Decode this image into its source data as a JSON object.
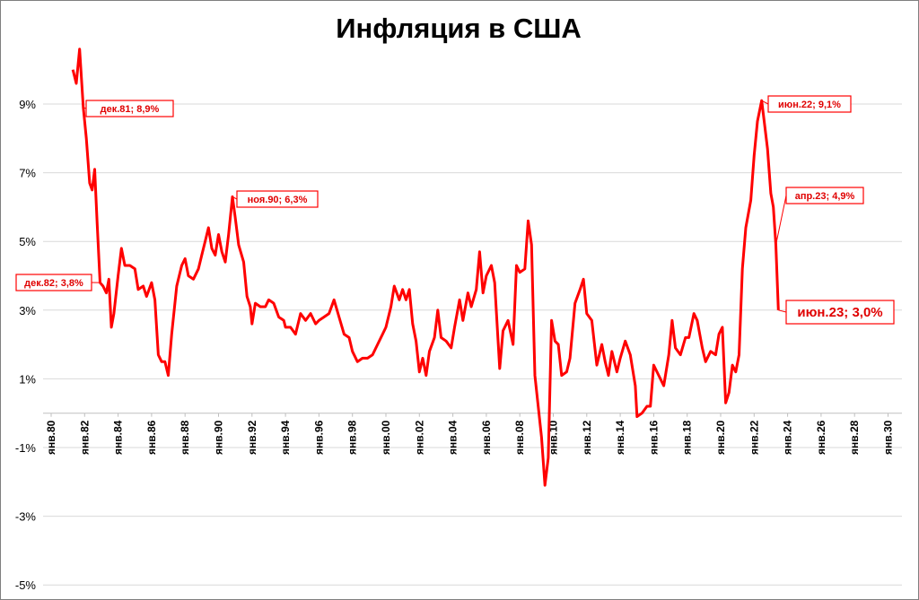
{
  "chart_data": {
    "type": "line",
    "title": "Инфляция в США",
    "xlabel": "",
    "ylabel": "",
    "ylim": [
      -5,
      10
    ],
    "y_ticks": [
      "9%",
      "7%",
      "5%",
      "3%",
      "1%",
      "-1%",
      "-3%",
      "-5%"
    ],
    "x_ticks": [
      "янв.80",
      "янв.82",
      "янв.84",
      "янв.86",
      "янв.88",
      "янв.90",
      "янв.92",
      "янв.94",
      "янв.96",
      "янв.98",
      "янв.00",
      "янв.02",
      "янв.04",
      "янв.06",
      "янв.08",
      "янв.10",
      "янв.12",
      "янв.14",
      "янв.16",
      "янв.18",
      "янв.20",
      "янв.22",
      "янв.24",
      "янв.26",
      "янв.28",
      "янв.30"
    ],
    "grid": "horizontal",
    "color": "#ff0000",
    "series": [
      {
        "points": [
          [
            1981.3,
            10.0
          ],
          [
            1981.5,
            9.6
          ],
          [
            1981.7,
            10.6
          ],
          [
            1981.92,
            8.9
          ],
          [
            1982.1,
            8.0
          ],
          [
            1982.3,
            6.7
          ],
          [
            1982.45,
            6.5
          ],
          [
            1982.6,
            7.1
          ],
          [
            1982.75,
            5.5
          ],
          [
            1982.92,
            3.8
          ],
          [
            1983.1,
            3.7
          ],
          [
            1983.3,
            3.5
          ],
          [
            1983.45,
            3.9
          ],
          [
            1983.6,
            2.5
          ],
          [
            1983.75,
            2.9
          ],
          [
            1984.0,
            4.0
          ],
          [
            1984.2,
            4.8
          ],
          [
            1984.4,
            4.3
          ],
          [
            1984.7,
            4.3
          ],
          [
            1985.0,
            4.2
          ],
          [
            1985.2,
            3.6
          ],
          [
            1985.5,
            3.7
          ],
          [
            1985.7,
            3.4
          ],
          [
            1986.0,
            3.8
          ],
          [
            1986.2,
            3.3
          ],
          [
            1986.4,
            1.7
          ],
          [
            1986.6,
            1.5
          ],
          [
            1986.8,
            1.5
          ],
          [
            1987.0,
            1.1
          ],
          [
            1987.2,
            2.3
          ],
          [
            1987.5,
            3.7
          ],
          [
            1987.8,
            4.3
          ],
          [
            1988.0,
            4.5
          ],
          [
            1988.2,
            4.0
          ],
          [
            1988.5,
            3.9
          ],
          [
            1988.8,
            4.2
          ],
          [
            1989.0,
            4.6
          ],
          [
            1989.2,
            5.0
          ],
          [
            1989.4,
            5.4
          ],
          [
            1989.6,
            4.8
          ],
          [
            1989.8,
            4.6
          ],
          [
            1990.0,
            5.2
          ],
          [
            1990.2,
            4.7
          ],
          [
            1990.4,
            4.4
          ],
          [
            1990.6,
            5.2
          ],
          [
            1990.83,
            6.3
          ],
          [
            1991.0,
            5.7
          ],
          [
            1991.2,
            4.9
          ],
          [
            1991.5,
            4.4
          ],
          [
            1991.7,
            3.4
          ],
          [
            1991.9,
            3.1
          ],
          [
            1992.0,
            2.6
          ],
          [
            1992.2,
            3.2
          ],
          [
            1992.5,
            3.1
          ],
          [
            1992.8,
            3.1
          ],
          [
            1993.0,
            3.3
          ],
          [
            1993.3,
            3.2
          ],
          [
            1993.6,
            2.8
          ],
          [
            1993.9,
            2.7
          ],
          [
            1994.0,
            2.5
          ],
          [
            1994.3,
            2.5
          ],
          [
            1994.6,
            2.3
          ],
          [
            1994.9,
            2.9
          ],
          [
            1995.2,
            2.7
          ],
          [
            1995.5,
            2.9
          ],
          [
            1995.8,
            2.6
          ],
          [
            1996.0,
            2.7
          ],
          [
            1996.3,
            2.8
          ],
          [
            1996.6,
            2.9
          ],
          [
            1996.9,
            3.3
          ],
          [
            1997.2,
            2.8
          ],
          [
            1997.5,
            2.3
          ],
          [
            1997.8,
            2.2
          ],
          [
            1998.0,
            1.8
          ],
          [
            1998.3,
            1.5
          ],
          [
            1998.6,
            1.6
          ],
          [
            1998.9,
            1.6
          ],
          [
            1999.2,
            1.7
          ],
          [
            1999.5,
            2.0
          ],
          [
            1999.8,
            2.3
          ],
          [
            2000.0,
            2.5
          ],
          [
            2000.3,
            3.1
          ],
          [
            2000.5,
            3.7
          ],
          [
            2000.8,
            3.3
          ],
          [
            2001.0,
            3.6
          ],
          [
            2001.2,
            3.3
          ],
          [
            2001.4,
            3.6
          ],
          [
            2001.6,
            2.6
          ],
          [
            2001.8,
            2.1
          ],
          [
            2002.0,
            1.2
          ],
          [
            2002.2,
            1.6
          ],
          [
            2002.4,
            1.1
          ],
          [
            2002.6,
            1.8
          ],
          [
            2002.9,
            2.2
          ],
          [
            2003.1,
            3.0
          ],
          [
            2003.3,
            2.2
          ],
          [
            2003.6,
            2.1
          ],
          [
            2003.9,
            1.9
          ],
          [
            2004.1,
            2.5
          ],
          [
            2004.4,
            3.3
          ],
          [
            2004.6,
            2.7
          ],
          [
            2004.9,
            3.5
          ],
          [
            2005.1,
            3.1
          ],
          [
            2005.4,
            3.6
          ],
          [
            2005.6,
            4.7
          ],
          [
            2005.8,
            3.5
          ],
          [
            2006.0,
            4.0
          ],
          [
            2006.3,
            4.3
          ],
          [
            2006.5,
            3.8
          ],
          [
            2006.7,
            2.1
          ],
          [
            2006.8,
            1.3
          ],
          [
            2007.0,
            2.4
          ],
          [
            2007.3,
            2.7
          ],
          [
            2007.6,
            2.0
          ],
          [
            2007.8,
            4.3
          ],
          [
            2008.0,
            4.1
          ],
          [
            2008.3,
            4.2
          ],
          [
            2008.5,
            5.6
          ],
          [
            2008.7,
            4.9
          ],
          [
            2008.9,
            1.1
          ],
          [
            2009.1,
            0.2
          ],
          [
            2009.3,
            -0.7
          ],
          [
            2009.5,
            -2.1
          ],
          [
            2009.7,
            -1.3
          ],
          [
            2009.9,
            2.7
          ],
          [
            2010.1,
            2.1
          ],
          [
            2010.3,
            2.0
          ],
          [
            2010.5,
            1.1
          ],
          [
            2010.8,
            1.2
          ],
          [
            2011.0,
            1.6
          ],
          [
            2011.3,
            3.2
          ],
          [
            2011.6,
            3.6
          ],
          [
            2011.8,
            3.9
          ],
          [
            2012.0,
            2.9
          ],
          [
            2012.3,
            2.7
          ],
          [
            2012.6,
            1.4
          ],
          [
            2012.9,
            2.0
          ],
          [
            2013.1,
            1.5
          ],
          [
            2013.3,
            1.1
          ],
          [
            2013.5,
            1.8
          ],
          [
            2013.8,
            1.2
          ],
          [
            2014.0,
            1.6
          ],
          [
            2014.3,
            2.1
          ],
          [
            2014.6,
            1.7
          ],
          [
            2014.9,
            0.8
          ],
          [
            2015.0,
            -0.1
          ],
          [
            2015.3,
            0.0
          ],
          [
            2015.6,
            0.2
          ],
          [
            2015.8,
            0.2
          ],
          [
            2016.0,
            1.4
          ],
          [
            2016.3,
            1.1
          ],
          [
            2016.6,
            0.8
          ],
          [
            2016.9,
            1.7
          ],
          [
            2017.1,
            2.7
          ],
          [
            2017.3,
            1.9
          ],
          [
            2017.6,
            1.7
          ],
          [
            2017.9,
            2.2
          ],
          [
            2018.1,
            2.2
          ],
          [
            2018.4,
            2.9
          ],
          [
            2018.6,
            2.7
          ],
          [
            2018.9,
            1.9
          ],
          [
            2019.1,
            1.5
          ],
          [
            2019.4,
            1.8
          ],
          [
            2019.7,
            1.7
          ],
          [
            2019.9,
            2.3
          ],
          [
            2020.1,
            2.5
          ],
          [
            2020.3,
            0.3
          ],
          [
            2020.5,
            0.6
          ],
          [
            2020.7,
            1.4
          ],
          [
            2020.9,
            1.2
          ],
          [
            2021.1,
            1.7
          ],
          [
            2021.3,
            4.2
          ],
          [
            2021.5,
            5.4
          ],
          [
            2021.8,
            6.2
          ],
          [
            2022.0,
            7.5
          ],
          [
            2022.2,
            8.5
          ],
          [
            2022.45,
            9.1
          ],
          [
            2022.6,
            8.5
          ],
          [
            2022.8,
            7.7
          ],
          [
            2023.0,
            6.4
          ],
          [
            2023.15,
            6.0
          ],
          [
            2023.3,
            4.9
          ],
          [
            2023.45,
            3.0
          ]
        ]
      }
    ],
    "annotations": [
      {
        "label": "дек.81; 8,9%"
      },
      {
        "label": "дек.82; 3,8%"
      },
      {
        "label": "ноя.90; 6,3%"
      },
      {
        "label": "июн.22; 9,1%"
      },
      {
        "label": "апр.23; 4,9%"
      },
      {
        "label": "июн.23; 3,0%"
      }
    ]
  }
}
